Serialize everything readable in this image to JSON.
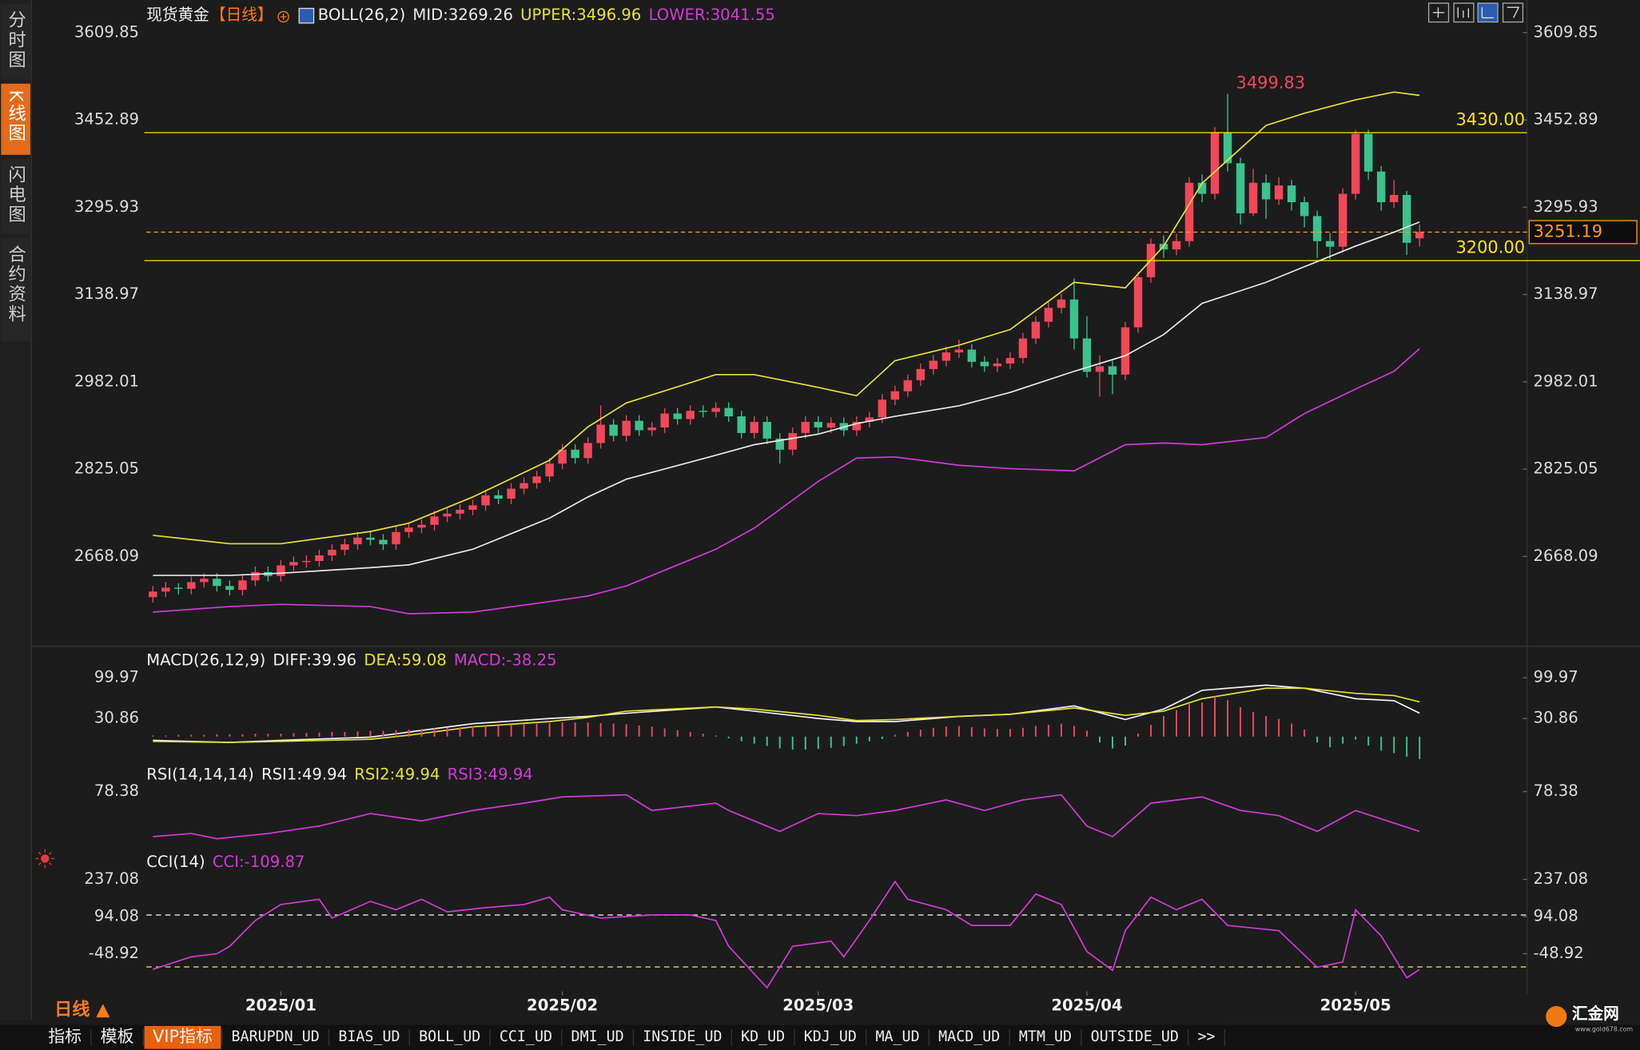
{
  "sidebar": {
    "tabs": [
      "分时图",
      "K线图",
      "闪电图",
      "合约资料"
    ]
  },
  "chart_data": [
    {
      "type": "candlestick",
      "title": "现货黄金",
      "period": "【日线】",
      "indicator": "BOLL(26,2)",
      "up_color": "#f0475b",
      "down_color": "#3cc28c",
      "open": [
        2595,
        2605,
        2612,
        2610,
        2622,
        2628,
        2615,
        2608,
        2625,
        2640,
        2633,
        2652,
        2658,
        2660,
        2670,
        2680,
        2690,
        2702,
        2698,
        2690,
        2712,
        2720,
        2725,
        2740,
        2745,
        2752,
        2760,
        2778,
        2772,
        2790,
        2800,
        2812,
        2835,
        2860,
        2845,
        2872,
        2905,
        2885,
        2912,
        2895,
        2900,
        2925,
        2915,
        2930,
        2928,
        2935,
        2920,
        2890,
        2910,
        2880,
        2860,
        2890,
        2910,
        2900,
        2908,
        2895,
        2910,
        2918,
        2950,
        2965,
        2985,
        3005,
        3020,
        3035,
        3040,
        3018,
        3010,
        3015,
        3025,
        3060,
        3090,
        3115,
        3130,
        3060,
        3000,
        3010,
        2995,
        3080,
        3170,
        3230,
        3220,
        3235,
        3340,
        3320,
        3430,
        3375,
        3285,
        3340,
        3310,
        3335,
        3305,
        3280,
        3235,
        3225,
        3320,
        3428,
        3360,
        3305,
        3318,
        3240
      ],
      "high": [
        2615,
        2622,
        2620,
        2632,
        2638,
        2638,
        2625,
        2635,
        2650,
        2650,
        2662,
        2668,
        2670,
        2680,
        2690,
        2700,
        2712,
        2712,
        2708,
        2722,
        2730,
        2735,
        2750,
        2755,
        2762,
        2770,
        2788,
        2788,
        2800,
        2810,
        2822,
        2845,
        2870,
        2870,
        2882,
        2940,
        2915,
        2922,
        2922,
        2910,
        2935,
        2935,
        2940,
        2940,
        2945,
        2945,
        2930,
        2920,
        2920,
        2890,
        2900,
        2920,
        2920,
        2918,
        2918,
        2920,
        2928,
        2960,
        2975,
        2995,
        3015,
        3030,
        3045,
        3058,
        3050,
        3028,
        3025,
        3035,
        3070,
        3100,
        3125,
        3140,
        3168,
        3100,
        3030,
        3020,
        3090,
        3180,
        3240,
        3245,
        3248,
        3350,
        3355,
        3440,
        3499.83,
        3385,
        3365,
        3355,
        3350,
        3345,
        3315,
        3290,
        3250,
        3330,
        3435,
        3435,
        3370,
        3345,
        3325,
        3265
      ],
      "low": [
        2585,
        2595,
        2600,
        2600,
        2612,
        2605,
        2598,
        2598,
        2615,
        2623,
        2623,
        2642,
        2648,
        2650,
        2660,
        2670,
        2680,
        2688,
        2680,
        2680,
        2702,
        2710,
        2715,
        2730,
        2735,
        2742,
        2750,
        2762,
        2762,
        2780,
        2790,
        2802,
        2825,
        2835,
        2835,
        2862,
        2875,
        2875,
        2885,
        2885,
        2890,
        2905,
        2905,
        2918,
        2918,
        2910,
        2880,
        2880,
        2870,
        2835,
        2850,
        2880,
        2890,
        2890,
        2885,
        2885,
        2900,
        2908,
        2940,
        2955,
        2975,
        2995,
        3010,
        3025,
        3008,
        3000,
        3000,
        3005,
        3015,
        3050,
        3080,
        3105,
        3040,
        2990,
        2955,
        2960,
        2985,
        3070,
        3160,
        3205,
        3210,
        3225,
        3305,
        3310,
        3360,
        3265,
        3280,
        3275,
        3300,
        3290,
        3260,
        3205,
        3202,
        3215,
        3310,
        3345,
        3290,
        3295,
        3210,
        3225
      ],
      "close": [
        2605,
        2612,
        2610,
        2622,
        2628,
        2615,
        2608,
        2625,
        2640,
        2633,
        2652,
        2658,
        2660,
        2670,
        2680,
        2690,
        2702,
        2698,
        2690,
        2712,
        2720,
        2725,
        2740,
        2745,
        2752,
        2760,
        2778,
        2772,
        2790,
        2800,
        2812,
        2835,
        2860,
        2845,
        2872,
        2905,
        2885,
        2912,
        2895,
        2900,
        2925,
        2915,
        2930,
        2928,
        2935,
        2920,
        2890,
        2910,
        2880,
        2860,
        2890,
        2910,
        2900,
        2908,
        2895,
        2910,
        2918,
        2950,
        2965,
        2985,
        3005,
        3020,
        3035,
        3040,
        3018,
        3010,
        3015,
        3025,
        3060,
        3090,
        3115,
        3130,
        3060,
        3000,
        3010,
        2995,
        3080,
        3170,
        3230,
        3220,
        3235,
        3340,
        3320,
        3430,
        3375,
        3285,
        3340,
        3310,
        3335,
        3305,
        3280,
        3235,
        3225,
        3320,
        3428,
        3360,
        3305,
        3318,
        3232,
        3251.19
      ],
      "series": [
        {
          "name": "MID:3269.26",
          "color": "#e8e8e8",
          "x": [
            0,
            6,
            10,
            17,
            20,
            25,
            31,
            34,
            37,
            44,
            47,
            52,
            55,
            58,
            63,
            67,
            72,
            76,
            79,
            82,
            87,
            90,
            94,
            97,
            99
          ],
          "values": [
            2634,
            2634,
            2638,
            2648,
            2653,
            2681,
            2737,
            2775,
            2807,
            2850,
            2869,
            2888,
            2907,
            2920,
            2939,
            2963,
            3001,
            3029,
            3067,
            3123,
            3161,
            3189,
            3226,
            3251,
            3269.26
          ]
        },
        {
          "name": "UPPER:3496.96",
          "color": "#e6e03a",
          "x": [
            0,
            6,
            10,
            17,
            20,
            25,
            31,
            34,
            37,
            44,
            47,
            52,
            55,
            58,
            63,
            67,
            72,
            76,
            79,
            82,
            87,
            90,
            94,
            97,
            99
          ],
          "values": [
            2706,
            2691,
            2691,
            2713,
            2728,
            2775,
            2841,
            2901,
            2944,
            2995,
            2995,
            2972,
            2957,
            3020,
            3048,
            3076,
            3161,
            3151,
            3226,
            3339,
            3443,
            3465,
            3489,
            3503,
            3496.96
          ]
        },
        {
          "name": "LOWER:3041.55",
          "color": "#d13ad6",
          "x": [
            0,
            6,
            10,
            17,
            20,
            25,
            31,
            34,
            37,
            44,
            47,
            52,
            55,
            58,
            63,
            67,
            72,
            76,
            79,
            82,
            87,
            90,
            94,
            97,
            99
          ],
          "values": [
            2568,
            2578,
            2582,
            2578,
            2565,
            2568,
            2587,
            2597,
            2615,
            2681,
            2719,
            2803,
            2845,
            2847,
            2832,
            2826,
            2822,
            2869,
            2872,
            2869,
            2882,
            2925,
            2969,
            3001,
            3041.55
          ]
        }
      ],
      "hlines": [
        {
          "value": 3430,
          "label": "3430.00",
          "color": "#ffe600"
        },
        {
          "value": 3200,
          "label": "3200.00",
          "color": "#ffe600"
        }
      ],
      "last_price": {
        "value": 3251.19,
        "label": "3251.19",
        "color": "#ff9a1f"
      },
      "annotations": [
        {
          "x": 84,
          "label": "3499.83",
          "color": "#f0475b"
        }
      ],
      "xlim": [
        -9.5,
        107.4
      ],
      "ylim": [
        2531,
        3659
      ],
      "yticks": [
        3609.85,
        3452.89,
        3295.93,
        3138.97,
        2982.01,
        2825.05,
        2668.09
      ],
      "xticks": [
        {
          "value": 10,
          "label": "2025/01"
        },
        {
          "value": 32,
          "label": "2025/02"
        },
        {
          "value": 52,
          "label": "2025/03"
        },
        {
          "value": 73,
          "label": "2025/04"
        },
        {
          "value": 94,
          "label": "2025/05"
        }
      ]
    },
    {
      "type": "macd",
      "title": "MACD(26,12,9)",
      "up_color": "#f0475b",
      "down_color": "#3cc28c",
      "series": [
        {
          "name": "DIFF:39.96",
          "color": "#f0f0f0",
          "x": [
            0,
            6,
            10,
            17,
            20,
            25,
            31,
            34,
            37,
            44,
            47,
            52,
            55,
            58,
            63,
            67,
            72,
            76,
            79,
            82,
            87,
            90,
            94,
            97,
            99
          ],
          "values": [
            -6.3,
            -9.9,
            -6.3,
            -1.0,
            7.8,
            22.0,
            30.9,
            34.4,
            39.7,
            50.4,
            43.3,
            30.9,
            25.6,
            25.6,
            34.4,
            38.0,
            52.1,
            29.1,
            46.8,
            78.7,
            87.6,
            82.2,
            64.5,
            61.0,
            39.96
          ]
        },
        {
          "name": "DEA:59.08",
          "color": "#e6e03a",
          "x": [
            0,
            6,
            10,
            17,
            20,
            25,
            31,
            34,
            37,
            44,
            47,
            52,
            55,
            58,
            63,
            67,
            72,
            76,
            79,
            82,
            87,
            90,
            94,
            97,
            99
          ],
          "values": [
            -8.1,
            -9.9,
            -8.1,
            -4.6,
            2.5,
            16.7,
            25.6,
            32.6,
            43.3,
            50.4,
            46.8,
            36.2,
            27.3,
            29.1,
            34.4,
            38.0,
            48.6,
            36.2,
            43.3,
            64.5,
            82.2,
            82.2,
            73.4,
            69.8,
            59.08
          ]
        },
        {
          "name": "MACD:-38.25",
          "color": "#d13ad6",
          "bars": true,
          "values": [
            2,
            2,
            3,
            3,
            3,
            4,
            4,
            4,
            5,
            5,
            5,
            6,
            6,
            7,
            8,
            8,
            9,
            10,
            10,
            11,
            12,
            13,
            14,
            15,
            16,
            17,
            18,
            19,
            20,
            21,
            22,
            23,
            24,
            24,
            24,
            23,
            22,
            21,
            19,
            17,
            14,
            11,
            8,
            5,
            2,
            -3,
            -8,
            -12,
            -16,
            -20,
            -22,
            -22,
            -21,
            -19,
            -16,
            -12,
            -8,
            -4,
            3,
            8,
            12,
            15,
            17,
            18,
            16,
            14,
            13,
            13,
            15,
            18,
            20,
            22,
            18,
            10,
            -10,
            -20,
            -15,
            5,
            20,
            35,
            45,
            55,
            58,
            68,
            62,
            50,
            42,
            35,
            30,
            22,
            12,
            -10,
            -18,
            -12,
            -5,
            -15,
            -24,
            -28,
            -34,
            -38.25
          ]
        }
      ],
      "ylim": [
        -42,
        141
      ],
      "yticks": [
        99.97,
        30.86
      ]
    },
    {
      "type": "line",
      "title": "RSI(14,14,14)",
      "series": [
        {
          "name": "RSI1:49.94",
          "color": "#f0f0f0"
        },
        {
          "name": "RSI2:49.94",
          "color": "#e6e03a"
        },
        {
          "name": "RSI3:49.94",
          "color": "#d13ad6",
          "x": [
            0,
            3,
            5,
            9,
            13,
            17,
            21,
            25,
            29,
            32,
            37,
            39,
            44,
            45,
            49,
            52,
            55,
            58,
            62,
            65,
            68,
            71,
            73,
            75,
            78,
            82,
            85,
            88,
            91,
            94,
            99
          ],
          "values": [
            46.2,
            48.4,
            44.7,
            48.4,
            53.7,
            62.7,
            57.4,
            64.9,
            70.1,
            74.6,
            76.1,
            64.9,
            70.1,
            64.9,
            49.9,
            62.7,
            61.2,
            64.9,
            72.4,
            64.9,
            72.4,
            76.1,
            53.7,
            46.2,
            70.1,
            74.6,
            64.9,
            61.2,
            49.9,
            64.9,
            49.94
          ]
        }
      ],
      "ylim": [
        37.2,
        94.8
      ],
      "yticks": [
        78.38
      ]
    },
    {
      "type": "line",
      "title": "CCI(14)",
      "series": [
        {
          "name": "CCI:-109.87",
          "color": "#d13ad6",
          "x": [
            0,
            3,
            5,
            6,
            8,
            10,
            13,
            14,
            17,
            19,
            21,
            23,
            26,
            29,
            31,
            32,
            35,
            39,
            42,
            44,
            45,
            48,
            50,
            53,
            54,
            56,
            58,
            59,
            62,
            64,
            67,
            69,
            71,
            73,
            75,
            76,
            78,
            80,
            82,
            84,
            88,
            91,
            93,
            94,
            96,
            98,
            99
          ],
          "values": [
            -109.3,
            -60.9,
            -48.9,
            -20.7,
            79.0,
            140.4,
            160.6,
            88.1,
            152.5,
            120.3,
            160.6,
            112.2,
            128.3,
            140.4,
            168.6,
            120.3,
            88.1,
            100.2,
            100.2,
            79.0,
            -20.7,
            -180,
            -20.7,
            -0.5,
            -60.9,
            79.0,
            229.0,
            160.6,
            120.3,
            60.1,
            60.1,
            180.7,
            140.4,
            -40.8,
            -113.3,
            39.7,
            168.6,
            120.3,
            160.6,
            60.1,
            39.7,
            -101.2,
            -81.1,
            120.3,
            19.6,
            -141.5,
            -109.87
          ]
        }
      ],
      "ref_lines": [
        {
          "value": 100,
          "color": "#e8e8e8"
        },
        {
          "value": -100,
          "color": "#e6d83a"
        }
      ],
      "ylim": [
        -182,
        281
      ],
      "yticks": [
        237.08,
        94.08,
        -48.92
      ]
    }
  ],
  "period_selector": "日线 ▲",
  "toolbar": [
    "指标",
    "模板",
    "VIP指标",
    "BARUPDN_UD",
    "BIAS_UD",
    "BOLL_UD",
    "CCI_UD",
    "DMI_UD",
    "INSIDE_UD",
    "KD_UD",
    "KDJ_UD",
    "MA_UD",
    "MACD_UD",
    "MTM_UD",
    "OUTSIDE_UD",
    ">>"
  ],
  "logo": {
    "name": "汇金网",
    "url": "www.gold678.com"
  }
}
